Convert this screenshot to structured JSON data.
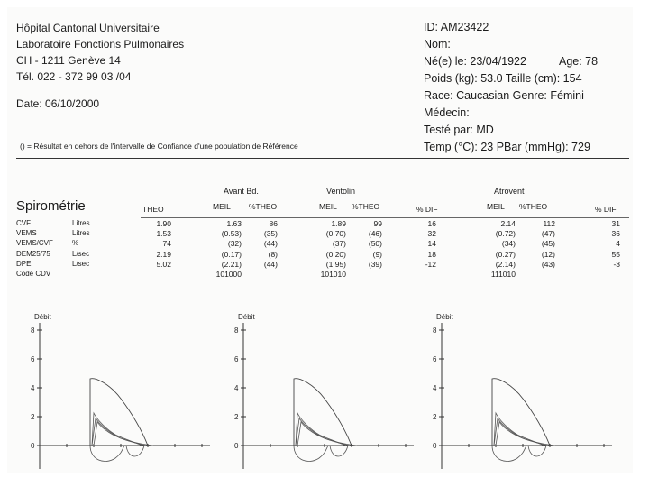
{
  "hospital": {
    "name": "Hôpital Cantonal Universitaire",
    "lab": "Laboratoire Fonctions Pulmonaires",
    "address": "CH - 1211 Genève 14",
    "phone": "Tél. 022 - 372 99 03 /04",
    "date": "Date: 06/10/2000"
  },
  "patient": {
    "id": "ID: AM23422",
    "nom": "Nom:",
    "birth": "Né(e) le: 23/04/1922",
    "age": "Age: 78",
    "weight_height": "Poids (kg): 53.0  Taille (cm): 154",
    "race_sex": "Race: Caucasian  Genre: Fémini",
    "medecin": "Médecin:",
    "tested_by": "Testé par: MD",
    "temp_pressure": "Temp (°C): 23  PBar (mmHg): 729"
  },
  "note": "() = Résultat en dehors de l'intervalle de Confiance d'une population de Référence",
  "spiro": {
    "title": "Spirométrie",
    "groups": [
      "Avant Bd.",
      "Ventolin",
      "Atrovent"
    ],
    "headers": {
      "theo": "THEO",
      "meil": "MEIL",
      "ptheo": "%THEO",
      "pdif": "% DIF"
    },
    "rows": [
      {
        "name": "CVF",
        "unit": "Litres",
        "theo": "1.90",
        "m1": "1.63",
        "p1": "86",
        "m2": "1.89",
        "p2": "99",
        "d2": "16",
        "m3": "2.14",
        "p3": "112",
        "d3": "31"
      },
      {
        "name": "VEMS",
        "unit": "Litres",
        "theo": "1.53",
        "m1": "(0.53)",
        "p1": "(35)",
        "m2": "(0.70)",
        "p2": "(46)",
        "d2": "32",
        "m3": "(0.72)",
        "p3": "(47)",
        "d3": "36"
      },
      {
        "name": "VEMS/CVF",
        "unit": "%",
        "theo": "74",
        "m1": "(32)",
        "p1": "(44)",
        "m2": "(37)",
        "p2": "(50)",
        "d2": "14",
        "m3": "(34)",
        "p3": "(45)",
        "d3": "4"
      },
      {
        "name": "DEM25/75",
        "unit": "L/sec",
        "theo": "2.19",
        "m1": "(0.17)",
        "p1": "(8)",
        "m2": "(0.20)",
        "p2": "(9)",
        "d2": "18",
        "m3": "(0.27)",
        "p3": "(12)",
        "d3": "55"
      },
      {
        "name": "DPE",
        "unit": "L/sec",
        "theo": "5.02",
        "m1": "(2.21)",
        "p1": "(44)",
        "m2": "(1.95)",
        "p2": "(39)",
        "d2": "-12",
        "m3": "(2.14)",
        "p3": "(43)",
        "d3": "-3"
      },
      {
        "name": "Code CDV",
        "unit": "",
        "theo": "",
        "m1": "101000",
        "p1": "",
        "m2": "101010",
        "p2": "",
        "d2": "",
        "m3": "111010",
        "p3": "",
        "d3": ""
      }
    ]
  },
  "charts": [
    {
      "label": "Débit",
      "ticks": [
        "8",
        "6",
        "4",
        "2",
        "0"
      ]
    },
    {
      "label": "Débit",
      "ticks": [
        "8",
        "6",
        "4",
        "2",
        "0"
      ]
    },
    {
      "label": "Débit",
      "ticks": [
        "8",
        "6",
        "4",
        "2",
        "0"
      ]
    }
  ]
}
